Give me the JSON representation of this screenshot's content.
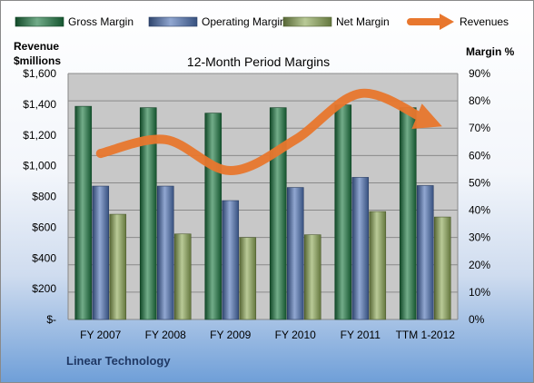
{
  "chart_data": {
    "type": "bar",
    "title": "12-Month Period Margins",
    "categories": [
      "FY 2007",
      "FY 2008",
      "FY 2009",
      "FY 2010",
      "FY 2011",
      "TTM 1-2012"
    ],
    "series": [
      {
        "name": "Gross Margin",
        "kind": "bar",
        "axis": "right",
        "color": "#1e7a43",
        "values": [
          0.78,
          0.775,
          0.755,
          0.775,
          0.785,
          0.775
        ]
      },
      {
        "name": "Operating Margin",
        "kind": "bar",
        "axis": "right",
        "color": "#4f73b5",
        "values": [
          0.488,
          0.488,
          0.435,
          0.483,
          0.52,
          0.49
        ]
      },
      {
        "name": "Net Margin",
        "kind": "bar",
        "axis": "right",
        "color": "#8faa58",
        "values": [
          0.385,
          0.313,
          0.3,
          0.31,
          0.395,
          0.375
        ]
      },
      {
        "name": "Revenues",
        "kind": "line",
        "axis": "left",
        "color": "#e8772e",
        "values": [
          1080,
          1170,
          968,
          1170,
          1470,
          1300
        ]
      }
    ],
    "yaxis_left": {
      "label_line1": "Revenue",
      "label_line2": "$millions",
      "min": 0,
      "max": 1600,
      "ticks": [
        "$-",
        "$200",
        "$400",
        "$600",
        "$800",
        "$1,000",
        "$1,200",
        "$1,400",
        "$1,600"
      ]
    },
    "yaxis_right": {
      "label": "Margin %",
      "min": 0,
      "max": 0.9,
      "ticks": [
        "0%",
        "10%",
        "20%",
        "30%",
        "40%",
        "50%",
        "60%",
        "70%",
        "80%",
        "90%"
      ]
    },
    "legend_position": "top",
    "grid": true
  },
  "footer": {
    "company": "Linear Technology"
  },
  "colors": {
    "plot_background": "#c8c8c8",
    "gridline": "#8a8a8a"
  }
}
